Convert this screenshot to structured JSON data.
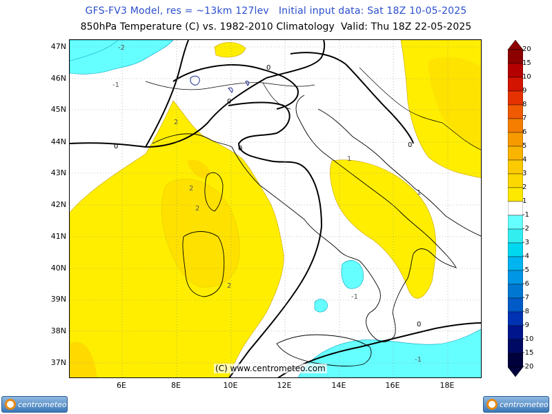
{
  "header": {
    "line1": "GFS-FV3 Model, res = ~13km 127lev   Initial input data: Sat 18Z 10-05-2025",
    "line2": "850hPa Temperature (C) vs. 1982-2010 Climatology  Valid: Thu 18Z 22-05-2025"
  },
  "map": {
    "y_labels": [
      "47N",
      "46N",
      "45N",
      "44N",
      "43N",
      "42N",
      "41N",
      "40N",
      "39N",
      "38N",
      "37N"
    ],
    "x_labels": [
      "6E",
      "8E",
      "10E",
      "12E",
      "14E",
      "16E",
      "18E"
    ],
    "contour_labels": [
      "-2",
      "-1",
      "0",
      "0",
      "0",
      "0",
      "2",
      "2",
      "2",
      "2",
      "1",
      "1",
      "-1",
      "-1",
      "0",
      "0"
    ],
    "copyright": "(C) www.centrometeo.com"
  },
  "legend": {
    "labels": [
      "20",
      "15",
      "10",
      "9",
      "8",
      "7",
      "6",
      "5",
      "4",
      "3",
      "2",
      "1",
      "-1",
      "-2",
      "-3",
      "-4",
      "-5",
      "-6",
      "-7",
      "-8",
      "-9",
      "-10",
      "-15",
      "-20"
    ],
    "colors": [
      "#8c0000",
      "#b40000",
      "#d21400",
      "#e63200",
      "#f05a00",
      "#f57d00",
      "#f79a00",
      "#f9b400",
      "#fbca00",
      "#fcd800",
      "#fde800",
      "#ffffff",
      "#66ffff",
      "#33eeee",
      "#00d8f0",
      "#00b4f0",
      "#0096e6",
      "#0078d2",
      "#005ac8",
      "#0032b4",
      "#00148c",
      "#000a64",
      "#00003c"
    ]
  },
  "logos": {
    "left_text": "centrometeo",
    "right_text": "centrometeo"
  },
  "colors": {
    "warm1": "#fff200",
    "warm2": "#ffd700",
    "cool1": "#66ffff",
    "title_blue": "#2a4ecb"
  }
}
